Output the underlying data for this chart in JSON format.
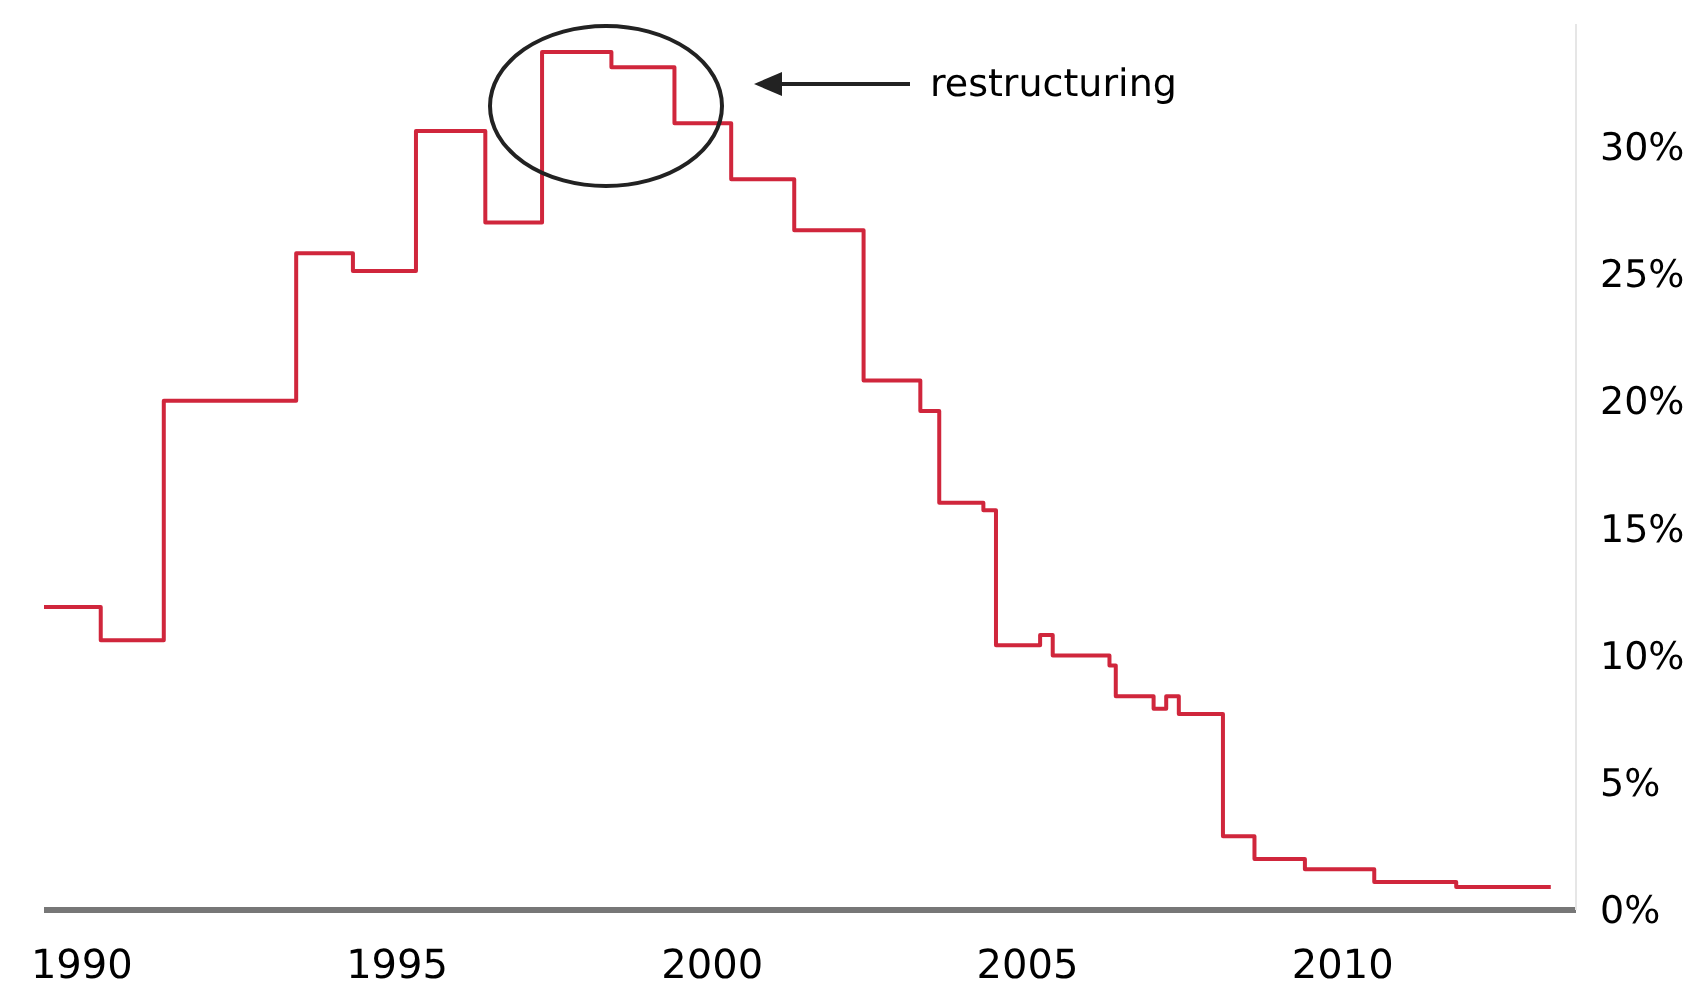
{
  "chart_data": {
    "type": "step",
    "x": [
      1989.4,
      1990.3,
      1991.3,
      1993.4,
      1994.3,
      1995.3,
      1996.4,
      1997.3,
      1998.4,
      1999.4,
      2000.3,
      2001.3,
      2002.4,
      2003.3,
      2003.6,
      2004.3,
      2004.5,
      2005.2,
      2005.4,
      2006.3,
      2006.4,
      2007.0,
      2007.2,
      2007.4,
      2008.1,
      2008.6,
      2009.4,
      2010.5,
      2011.8,
      2013.3
    ],
    "series": [
      {
        "color": "#d0263c",
        "values": [
          11.9,
          10.6,
          20.0,
          25.8,
          25.1,
          30.6,
          27.0,
          33.7,
          33.1,
          30.9,
          28.7,
          26.7,
          20.8,
          19.6,
          16.0,
          15.7,
          10.4,
          10.8,
          10.0,
          9.6,
          8.4,
          7.9,
          8.4,
          7.7,
          2.9,
          2.0,
          1.6,
          1.1,
          0.9,
          0.9
        ]
      }
    ],
    "xlim": [
      1989.4,
      2013.7
    ],
    "xticks": [
      1990,
      1995,
      2000,
      2005,
      2010
    ],
    "ylim": [
      0,
      34.8
    ],
    "yticks": [
      {
        "value": 0,
        "label": "0%"
      },
      {
        "value": 5,
        "label": "5%"
      },
      {
        "value": 10,
        "label": "10%"
      },
      {
        "value": 15,
        "label": "15%"
      },
      {
        "value": 20,
        "label": "20%"
      },
      {
        "value": 25,
        "label": "25%"
      },
      {
        "value": 30,
        "label": "30%"
      }
    ],
    "annotations": [
      "restructuring"
    ]
  }
}
